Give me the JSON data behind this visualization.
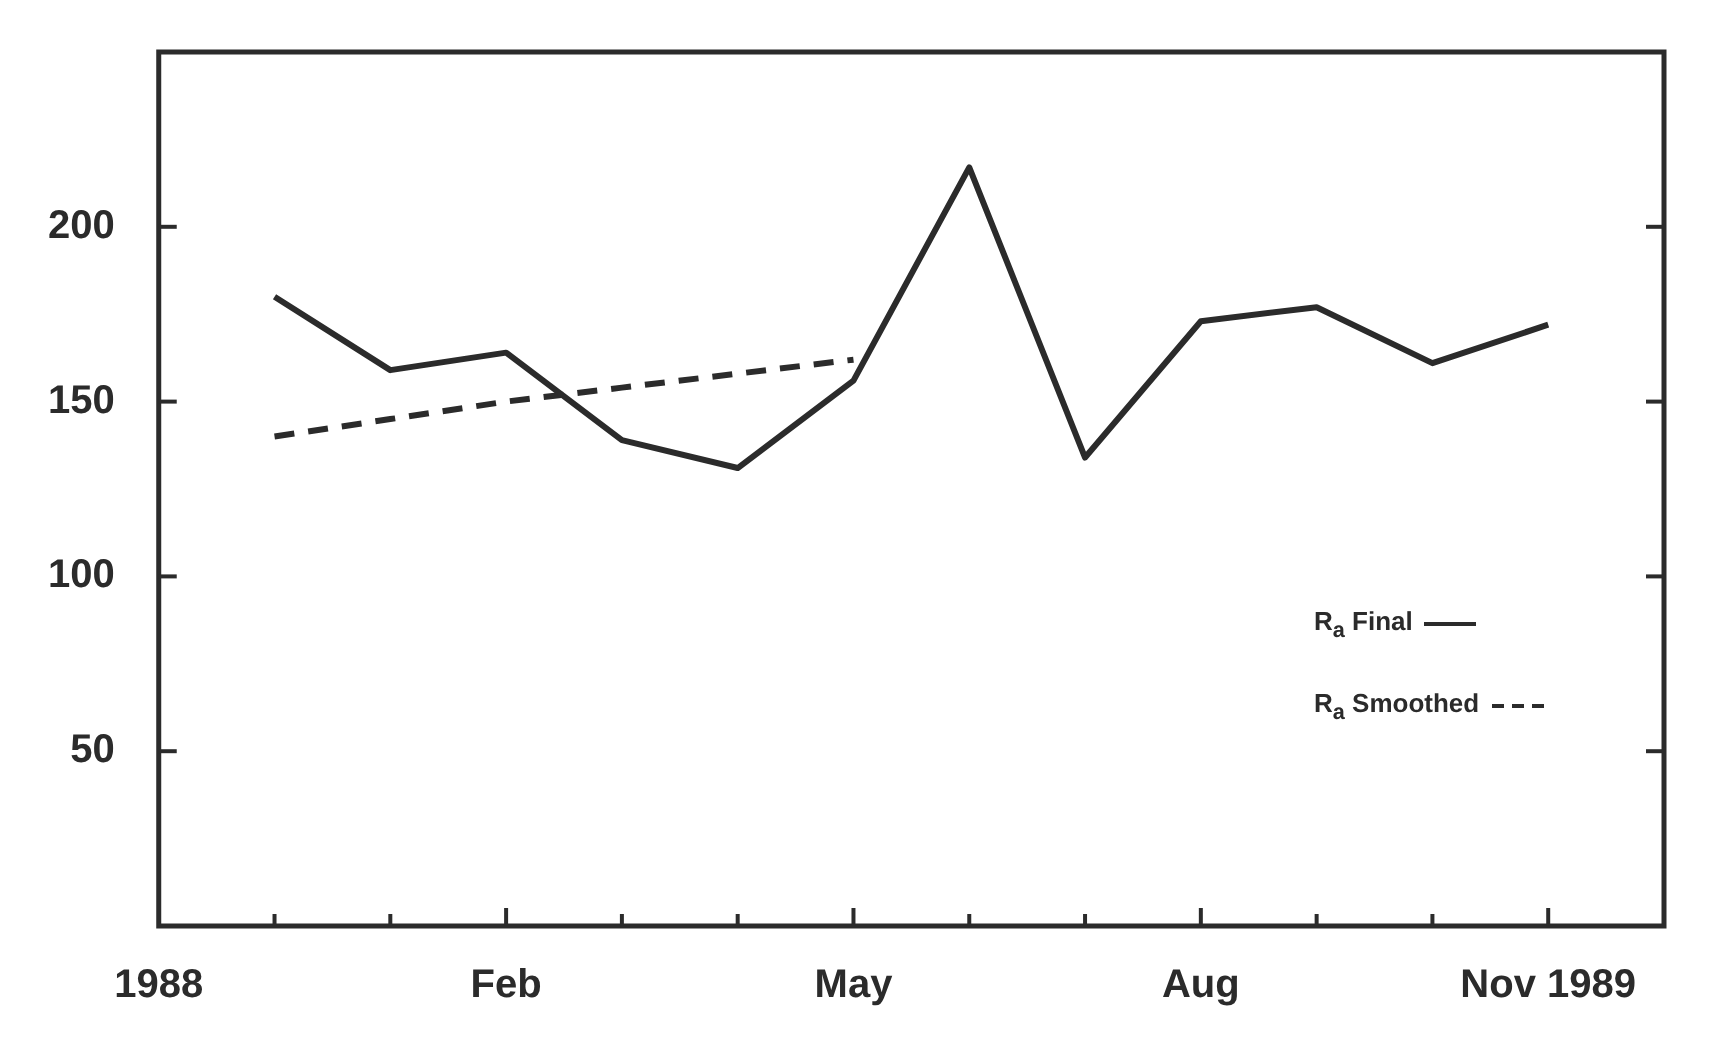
{
  "chart_data": {
    "type": "line",
    "categories": [
      "1988",
      null,
      null,
      "Feb",
      null,
      null,
      "May",
      null,
      null,
      "Aug",
      null,
      null,
      "Nov 1989",
      null
    ],
    "series": [
      {
        "name": "R$_{a}$ Final",
        "color": "#2b2b2b",
        "line_style": "solid",
        "values": [
          null,
          180,
          159,
          164,
          139,
          131,
          156,
          217,
          134,
          173,
          177,
          161,
          172,
          null
        ]
      },
      {
        "name": "R$_{a}$ Smoothed",
        "color": "#2b2b2b",
        "line_style": "dashed",
        "values": [
          null,
          140,
          145,
          150,
          154,
          158,
          162,
          null,
          null,
          null,
          null,
          null,
          null,
          null
        ]
      }
    ],
    "ylim": [
      0,
      250
    ],
    "yticks": [
      50,
      100,
      150,
      200
    ],
    "legend": "bottom right",
    "marker": "none"
  }
}
